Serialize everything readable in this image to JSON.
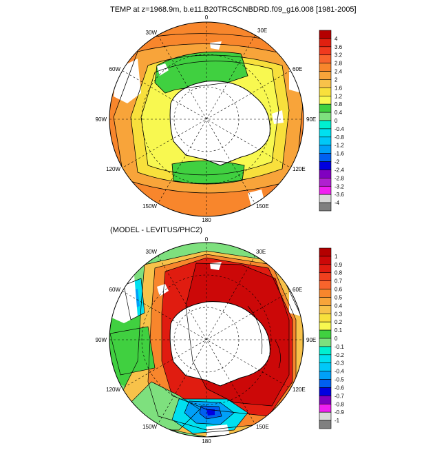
{
  "maps": [
    {
      "title": "TEMP at z=1968.9m, b.e11.B20TRC5CNBDRD.f09_g16.008 [1981-2005]",
      "lon_labels": [
        "0",
        "30E",
        "60E",
        "90E",
        "120E",
        "150E",
        "180",
        "150W",
        "120W",
        "90W",
        "60W",
        "30W"
      ],
      "colorbar": {
        "labels": [
          "4",
          "3.6",
          "3.2",
          "2.8",
          "2.4",
          "2",
          "1.6",
          "1.2",
          "0.8",
          "0.4",
          "0",
          "-0.4",
          "-0.8",
          "-1.2",
          "-1.6",
          "-2",
          "-2.4",
          "-2.8",
          "-3.2",
          "-3.6",
          "-4"
        ],
        "colors": [
          "#b40000",
          "#e02010",
          "#f03a1e",
          "#f8642c",
          "#f8862c",
          "#f8a43a",
          "#f8c24a",
          "#f8e03c",
          "#f8f850",
          "#40d040",
          "#7ee07e",
          "#00f0d0",
          "#00e0f0",
          "#00c8f8",
          "#00a0f8",
          "#0060f0",
          "#0000e0",
          "#8000c0",
          "#b020d0",
          "#f020f0",
          "#d8d8d8",
          "#808080"
        ]
      }
    },
    {
      "title": "(MODEL - LEVITUS/PHC2)",
      "lon_labels": [
        "0",
        "30E",
        "60E",
        "90E",
        "120E",
        "150E",
        "180",
        "150W",
        "120W",
        "90W",
        "60W",
        "30W"
      ],
      "colorbar": {
        "labels": [
          "1",
          "0.9",
          "0.8",
          "0.7",
          "0.6",
          "0.5",
          "0.4",
          "0.3",
          "0.2",
          "0.1",
          "0",
          "-0.1",
          "-0.2",
          "-0.3",
          "-0.4",
          "-0.5",
          "-0.6",
          "-0.7",
          "-0.8",
          "-0.9",
          "-1"
        ],
        "colors": [
          "#b40000",
          "#cc0808",
          "#e01c10",
          "#f0401e",
          "#f8642c",
          "#f8862c",
          "#f8a43a",
          "#f8c24a",
          "#f8e03c",
          "#f8f850",
          "#40d040",
          "#7ee07e",
          "#00f0d0",
          "#00e0f0",
          "#00c8f8",
          "#00a0f8",
          "#0060f0",
          "#0000e0",
          "#8000c0",
          "#f020f0",
          "#d8d8d8",
          "#808080"
        ]
      }
    }
  ]
}
